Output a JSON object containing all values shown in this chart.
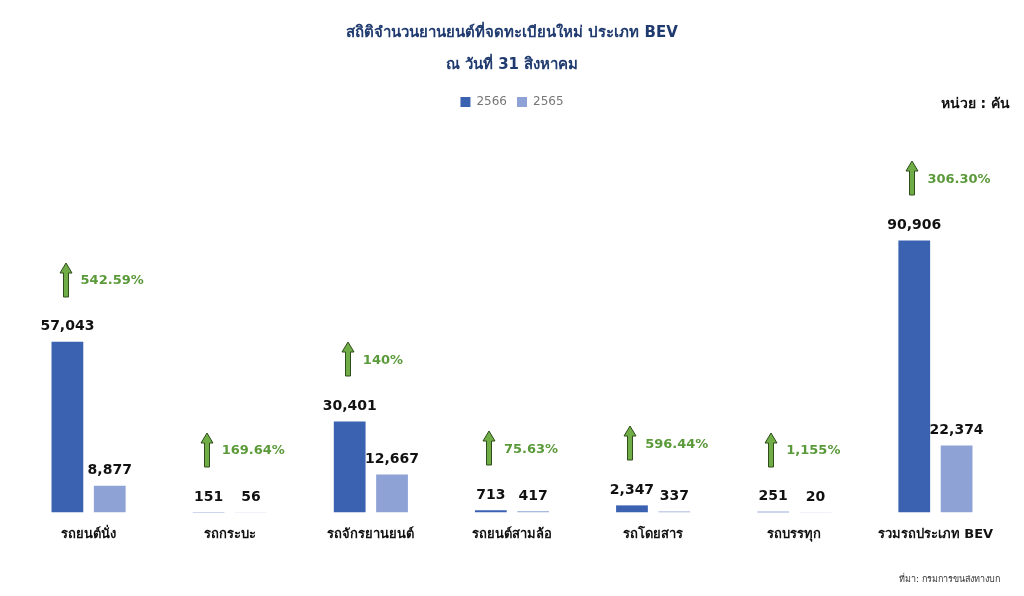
{
  "chart_data": {
    "type": "bar",
    "title": "สถิติจำนวนยานยนต์ที่จดทะเบียนใหม่ ประเภท BEV",
    "subtitle": "ณ วันที่ 31 สิงหาคม",
    "categories": [
      "รถยนต์นั่ง",
      "รถกระบะ",
      "รถจักรยานยนต์",
      "รถยนต์สามล้อ",
      "รถโดยสาร",
      "รถบรรทุก",
      "รวมรถประเภท BEV"
    ],
    "series": [
      {
        "name": "2566",
        "color": "#3a62b0",
        "values": [
          57043,
          151,
          30401,
          713,
          2347,
          251,
          90906
        ],
        "value_labels": [
          "57,043",
          "151",
          "30,401",
          "713",
          "2,347",
          "251",
          "90,906"
        ]
      },
      {
        "name": "2565",
        "color": "#8ea2d6",
        "values": [
          8877,
          56,
          12667,
          417,
          337,
          20,
          22374
        ],
        "value_labels": [
          "8,877",
          "56",
          "12,667",
          "417",
          "337",
          "20",
          "22,374"
        ]
      }
    ],
    "legend": "top",
    "grid": false,
    "annotations": [
      "หน่วย : คัน",
      "ที่มา: กรมการขนส่งทางบก",
      "542.59%",
      "169.64%",
      "140%",
      "75.63%",
      "596.44%",
      "1,155%",
      "306.30%"
    ]
  }
}
